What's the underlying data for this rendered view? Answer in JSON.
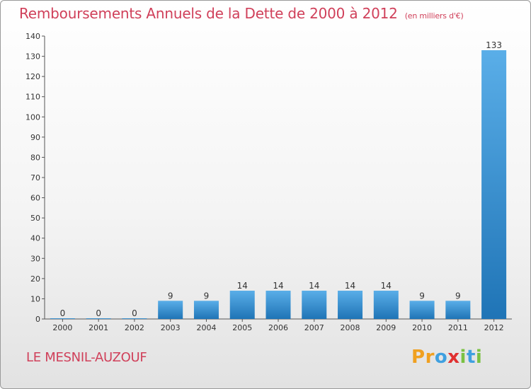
{
  "chart_data": {
    "type": "bar",
    "title": "Remboursements Annuels de la Dette de 2000 à 2012",
    "unit_label": "(en milliers d'€)",
    "categories": [
      "2000",
      "2001",
      "2002",
      "2003",
      "2004",
      "2005",
      "2006",
      "2007",
      "2008",
      "2009",
      "2010",
      "2011",
      "2012"
    ],
    "values": [
      0,
      0,
      0,
      9,
      9,
      14,
      14,
      14,
      14,
      14,
      9,
      9,
      133
    ],
    "ylim": [
      0,
      140
    ],
    "yticks": [
      0,
      10,
      20,
      30,
      40,
      50,
      60,
      70,
      80,
      90,
      100,
      110,
      120,
      130,
      140
    ],
    "grid": false,
    "xlabel": "",
    "ylabel": ""
  },
  "commune": "LE MESNIL-AUZOUF",
  "logo": {
    "letters": [
      "P",
      "r",
      "o",
      "x",
      "i",
      "t",
      "i"
    ],
    "colors": [
      "#f0a020",
      "#f0a020",
      "#3fa0e0",
      "#e03030",
      "#7ac143",
      "#3fa0e0",
      "#7ac143"
    ]
  },
  "colors": {
    "title": "#d0405a",
    "bar_light": "#5aaee8",
    "bar_dark": "#1f74b6",
    "axis": "#444444"
  }
}
